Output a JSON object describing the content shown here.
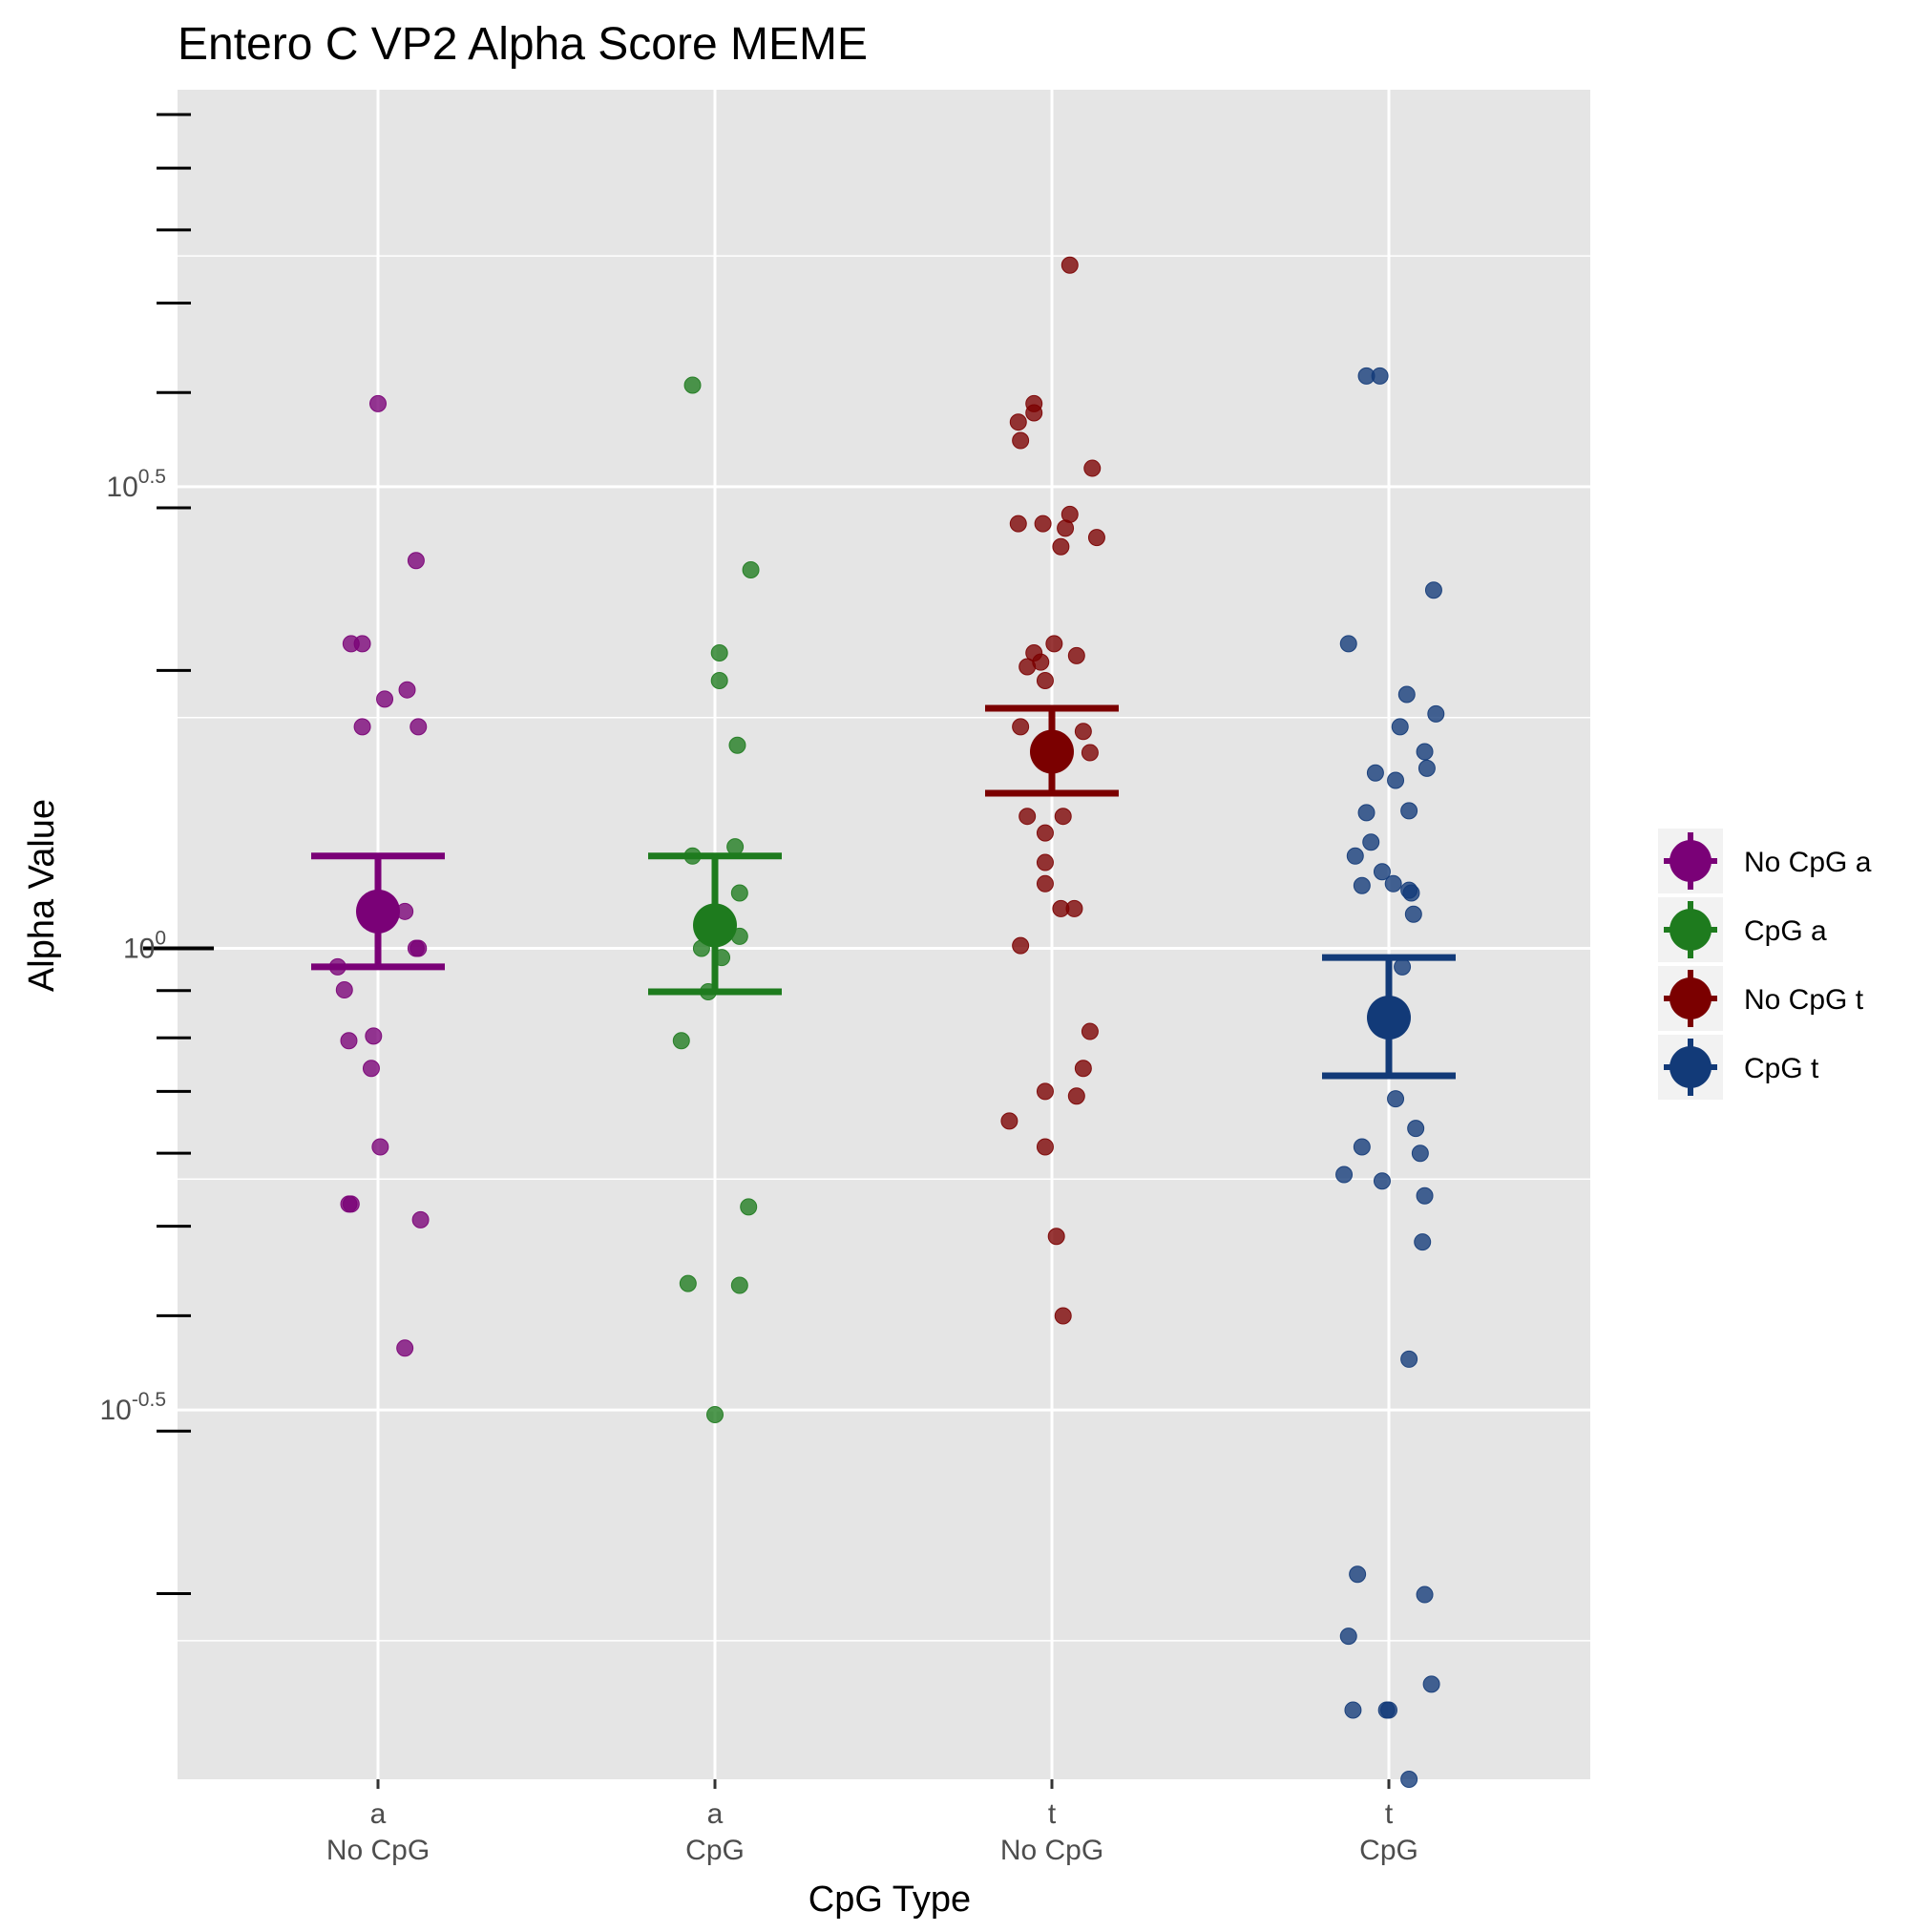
{
  "chart_data": {
    "type": "scatter",
    "title": "Entero C VP2 Alpha Score MEME",
    "xlabel": "CpG Type",
    "ylabel": "Alpha Value",
    "y_scale": "log10",
    "ylim_log10": [
      -0.9,
      0.93
    ],
    "y_ticks": [
      {
        "log10": -0.5,
        "base": "10",
        "exp": "-0.5"
      },
      {
        "log10": 0,
        "base": "1",
        "exp": "0"
      },
      {
        "log10": 0.5,
        "base": "10",
        "exp": "0.5"
      }
    ],
    "grid": true,
    "legend_position": "right",
    "categories": [
      {
        "top": "a",
        "bottom": "No CpG"
      },
      {
        "top": "a",
        "bottom": "CpG"
      },
      {
        "top": "t",
        "bottom": "No CpG"
      },
      {
        "top": "t",
        "bottom": "CpG"
      }
    ],
    "series": [
      {
        "name": "No CpG a",
        "color": "#7a0177",
        "mean_log10": 0.04,
        "ci_low_log10": -0.02,
        "ci_high_log10": 0.1,
        "points": [
          [
            0.0,
            0.59
          ],
          [
            0.17,
            0.42
          ],
          [
            -0.12,
            0.33
          ],
          [
            -0.07,
            0.33
          ],
          [
            0.03,
            0.27
          ],
          [
            0.13,
            0.28
          ],
          [
            0.18,
            0.24
          ],
          [
            -0.07,
            0.24
          ],
          [
            0.12,
            0.04
          ],
          [
            0.18,
            0.0
          ],
          [
            0.17,
            0.0
          ],
          [
            -0.18,
            -0.02
          ],
          [
            -0.15,
            -0.045
          ],
          [
            -0.13,
            -0.1
          ],
          [
            -0.02,
            -0.095
          ],
          [
            -0.03,
            -0.13
          ],
          [
            0.01,
            -0.215
          ],
          [
            -0.13,
            -0.277
          ],
          [
            -0.12,
            -0.277
          ],
          [
            0.19,
            -0.294
          ],
          [
            0.12,
            -0.433
          ]
        ]
      },
      {
        "name": "CpG a",
        "color": "#1e7b1e",
        "mean_log10": 0.025,
        "ci_low_log10": -0.047,
        "ci_high_log10": 0.1,
        "points": [
          [
            -0.1,
            0.61
          ],
          [
            0.16,
            0.41
          ],
          [
            0.02,
            0.32
          ],
          [
            0.02,
            0.29
          ],
          [
            0.1,
            0.22
          ],
          [
            0.09,
            0.11
          ],
          [
            -0.1,
            0.1
          ],
          [
            0.11,
            0.06
          ],
          [
            0.11,
            0.013
          ],
          [
            0.03,
            -0.01
          ],
          [
            -0.06,
            0.0
          ],
          [
            -0.03,
            -0.047
          ],
          [
            -0.15,
            -0.1
          ],
          [
            0.15,
            -0.28
          ],
          [
            -0.12,
            -0.363
          ],
          [
            0.11,
            -0.365
          ],
          [
            0.0,
            -0.505
          ]
        ]
      },
      {
        "name": "No CpG t",
        "color": "#7b0000",
        "mean_log10": 0.213,
        "ci_low_log10": 0.168,
        "ci_high_log10": 0.26,
        "points": [
          [
            0.08,
            0.74
          ],
          [
            -0.08,
            0.59
          ],
          [
            -0.08,
            0.58
          ],
          [
            -0.15,
            0.57
          ],
          [
            -0.14,
            0.55
          ],
          [
            0.18,
            0.52
          ],
          [
            0.08,
            0.47
          ],
          [
            -0.15,
            0.46
          ],
          [
            -0.04,
            0.46
          ],
          [
            0.06,
            0.455
          ],
          [
            0.2,
            0.445
          ],
          [
            0.04,
            0.435
          ],
          [
            0.01,
            0.33
          ],
          [
            -0.08,
            0.32
          ],
          [
            -0.05,
            0.31
          ],
          [
            0.11,
            0.317
          ],
          [
            -0.11,
            0.305
          ],
          [
            -0.03,
            0.29
          ],
          [
            -0.14,
            0.24
          ],
          [
            0.14,
            0.235
          ],
          [
            0.17,
            0.212
          ],
          [
            -0.11,
            0.143
          ],
          [
            0.05,
            0.143
          ],
          [
            -0.03,
            0.125
          ],
          [
            -0.03,
            0.093
          ],
          [
            -0.03,
            0.07
          ],
          [
            0.04,
            0.043
          ],
          [
            0.1,
            0.043
          ],
          [
            -0.14,
            0.003
          ],
          [
            0.17,
            -0.09
          ],
          [
            0.14,
            -0.13
          ],
          [
            -0.03,
            -0.155
          ],
          [
            0.11,
            -0.16
          ],
          [
            -0.19,
            -0.187
          ],
          [
            -0.03,
            -0.215
          ],
          [
            0.02,
            -0.312
          ],
          [
            0.05,
            -0.398
          ]
        ]
      },
      {
        "name": "CpG t",
        "color": "#123a78",
        "mean_log10": -0.075,
        "ci_low_log10": -0.138,
        "ci_high_log10": -0.01,
        "points": [
          [
            -0.1,
            0.62
          ],
          [
            -0.04,
            0.62
          ],
          [
            0.2,
            0.388
          ],
          [
            -0.18,
            0.33
          ],
          [
            0.08,
            0.275
          ],
          [
            0.21,
            0.254
          ],
          [
            0.05,
            0.24
          ],
          [
            0.16,
            0.213
          ],
          [
            0.17,
            0.195
          ],
          [
            -0.06,
            0.19
          ],
          [
            0.03,
            0.182
          ],
          [
            0.09,
            0.149
          ],
          [
            -0.1,
            0.147
          ],
          [
            -0.08,
            0.115
          ],
          [
            -0.15,
            0.1
          ],
          [
            -0.03,
            0.083
          ],
          [
            0.02,
            0.07
          ],
          [
            -0.12,
            0.068
          ],
          [
            0.09,
            0.063
          ],
          [
            0.1,
            0.06
          ],
          [
            0.11,
            0.037
          ],
          [
            0.06,
            -0.02
          ],
          [
            0.03,
            -0.163
          ],
          [
            0.12,
            -0.195
          ],
          [
            -0.12,
            -0.215
          ],
          [
            0.14,
            -0.222
          ],
          [
            -0.2,
            -0.245
          ],
          [
            -0.03,
            -0.252
          ],
          [
            0.16,
            -0.268
          ],
          [
            0.15,
            -0.318
          ],
          [
            0.09,
            -0.445
          ],
          [
            -0.14,
            -0.678
          ],
          [
            0.16,
            -0.7
          ],
          [
            -0.18,
            -0.745
          ],
          [
            0.19,
            -0.797
          ],
          [
            -0.16,
            -0.825
          ],
          [
            -0.01,
            -0.825
          ],
          [
            0.0,
            -0.825
          ],
          [
            0.09,
            -0.9
          ]
        ]
      }
    ]
  }
}
